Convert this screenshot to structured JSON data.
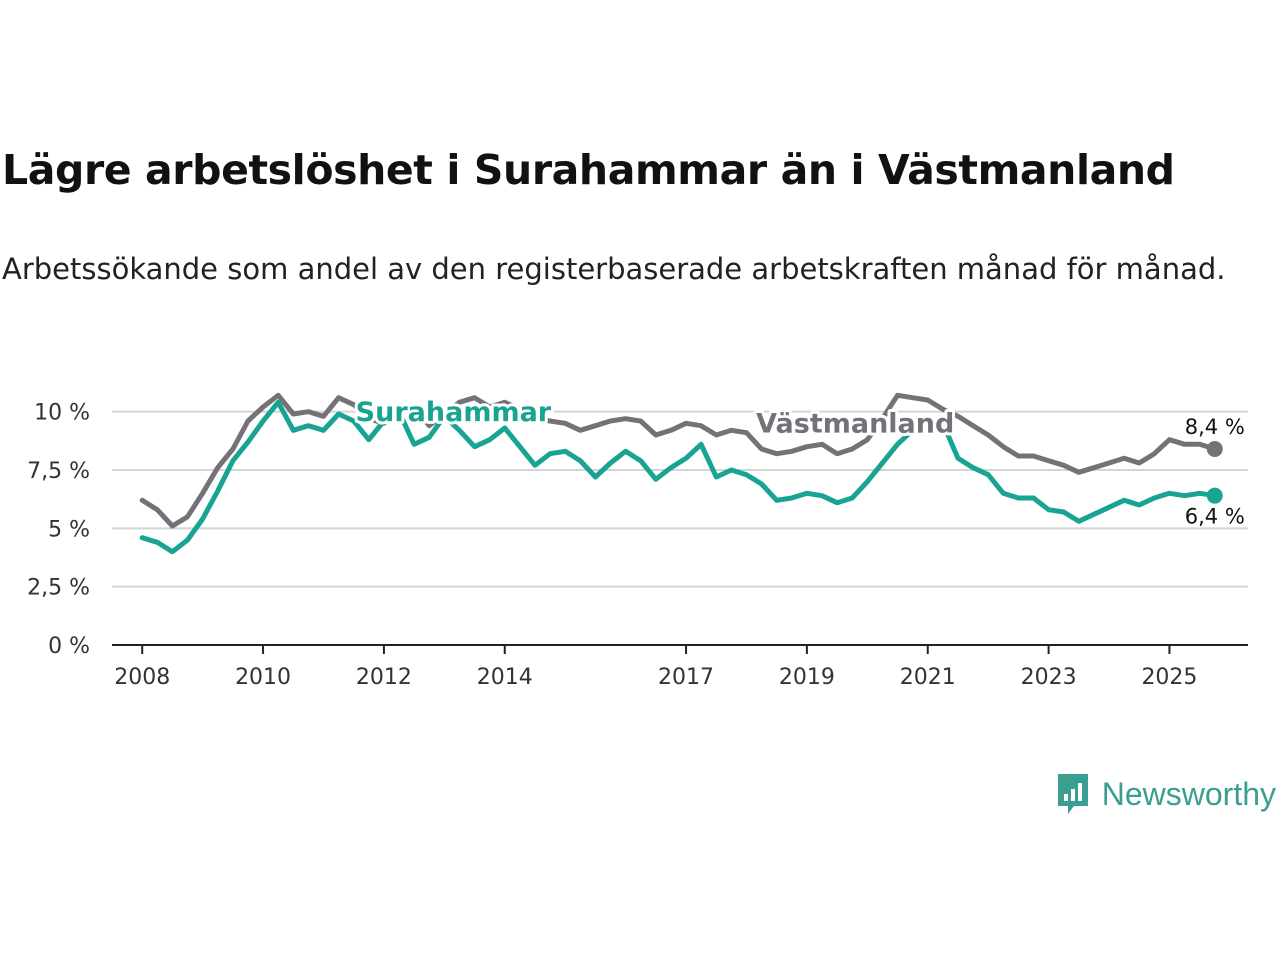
{
  "title": "Lägre arbetslöshet i Surahammar än i Västmanland",
  "subtitle": "Arbetssökande som andel av den registerbaserade arbetskraften månad för månad.",
  "brand": {
    "name": "Newsworthy",
    "color": "#3a9e90",
    "icon": "newsworthy-logo-icon"
  },
  "chart_data": {
    "type": "line",
    "title": "Lägre arbetslöshet i Surahammar än i Västmanland",
    "xlabel": "",
    "ylabel": "",
    "xlim": [
      2007.5,
      2026.3
    ],
    "ylim": [
      0,
      10.5
    ],
    "grid": "horizontal",
    "y_ticks": [
      {
        "value": 0,
        "label": "0 %"
      },
      {
        "value": 2.5,
        "label": "2,5 %"
      },
      {
        "value": 5,
        "label": "5 %"
      },
      {
        "value": 7.5,
        "label": "7,5 %"
      },
      {
        "value": 10,
        "label": "10 %"
      }
    ],
    "x_ticks": [
      {
        "value": 2008,
        "label": "2008"
      },
      {
        "value": 2010,
        "label": "2010"
      },
      {
        "value": 2012,
        "label": "2012"
      },
      {
        "value": 2014,
        "label": "2014"
      },
      {
        "value": 2017,
        "label": "2017"
      },
      {
        "value": 2019,
        "label": "2019"
      },
      {
        "value": 2021,
        "label": "2021"
      },
      {
        "value": 2023,
        "label": "2023"
      },
      {
        "value": 2025,
        "label": "2025"
      }
    ],
    "series": [
      {
        "name": "Västmanland",
        "color": "#747278",
        "label_at": {
          "x": 2019.8,
          "y": 9.1
        },
        "end_label": "8,4 %",
        "points": [
          [
            2008.0,
            6.2
          ],
          [
            2008.25,
            5.8
          ],
          [
            2008.5,
            5.1
          ],
          [
            2008.75,
            5.5
          ],
          [
            2009.0,
            6.5
          ],
          [
            2009.25,
            7.6
          ],
          [
            2009.5,
            8.4
          ],
          [
            2009.75,
            9.6
          ],
          [
            2010.0,
            10.2
          ],
          [
            2010.25,
            10.7
          ],
          [
            2010.5,
            9.9
          ],
          [
            2010.75,
            10.0
          ],
          [
            2011.0,
            9.8
          ],
          [
            2011.25,
            10.6
          ],
          [
            2011.5,
            10.3
          ],
          [
            2011.75,
            9.7
          ],
          [
            2012.0,
            9.5
          ],
          [
            2012.25,
            10.0
          ],
          [
            2012.5,
            10.2
          ],
          [
            2012.75,
            9.4
          ],
          [
            2013.0,
            9.9
          ],
          [
            2013.25,
            10.4
          ],
          [
            2013.5,
            10.6
          ],
          [
            2013.75,
            10.2
          ],
          [
            2014.0,
            10.4
          ],
          [
            2014.25,
            10.1
          ],
          [
            2014.5,
            9.7
          ],
          [
            2014.75,
            9.6
          ],
          [
            2015.0,
            9.5
          ],
          [
            2015.25,
            9.2
          ],
          [
            2015.5,
            9.4
          ],
          [
            2015.75,
            9.6
          ],
          [
            2016.0,
            9.7
          ],
          [
            2016.25,
            9.6
          ],
          [
            2016.5,
            9.0
          ],
          [
            2016.75,
            9.2
          ],
          [
            2017.0,
            9.5
          ],
          [
            2017.25,
            9.4
          ],
          [
            2017.5,
            9.0
          ],
          [
            2017.75,
            9.2
          ],
          [
            2018.0,
            9.1
          ],
          [
            2018.25,
            8.4
          ],
          [
            2018.5,
            8.2
          ],
          [
            2018.75,
            8.3
          ],
          [
            2019.0,
            8.5
          ],
          [
            2019.25,
            8.6
          ],
          [
            2019.5,
            8.2
          ],
          [
            2019.75,
            8.4
          ],
          [
            2020.0,
            8.8
          ],
          [
            2020.25,
            9.7
          ],
          [
            2020.5,
            10.7
          ],
          [
            2020.75,
            10.6
          ],
          [
            2021.0,
            10.5
          ],
          [
            2021.25,
            10.1
          ],
          [
            2021.5,
            9.8
          ],
          [
            2021.75,
            9.4
          ],
          [
            2022.0,
            9.0
          ],
          [
            2022.25,
            8.5
          ],
          [
            2022.5,
            8.1
          ],
          [
            2022.75,
            8.1
          ],
          [
            2023.0,
            7.9
          ],
          [
            2023.25,
            7.7
          ],
          [
            2023.5,
            7.4
          ],
          [
            2023.75,
            7.6
          ],
          [
            2024.0,
            7.8
          ],
          [
            2024.25,
            8.0
          ],
          [
            2024.5,
            7.8
          ],
          [
            2024.75,
            8.2
          ],
          [
            2025.0,
            8.8
          ],
          [
            2025.25,
            8.6
          ],
          [
            2025.5,
            8.6
          ],
          [
            2025.75,
            8.4
          ]
        ]
      },
      {
        "name": "Surahammar",
        "color": "#19a393",
        "label_at": {
          "x": 2013.15,
          "y": 9.6
        },
        "end_label": "6,4 %",
        "points": [
          [
            2008.0,
            4.6
          ],
          [
            2008.25,
            4.4
          ],
          [
            2008.5,
            4.0
          ],
          [
            2008.75,
            4.5
          ],
          [
            2009.0,
            5.4
          ],
          [
            2009.25,
            6.6
          ],
          [
            2009.5,
            7.9
          ],
          [
            2009.75,
            8.7
          ],
          [
            2010.0,
            9.6
          ],
          [
            2010.25,
            10.4
          ],
          [
            2010.5,
            9.2
          ],
          [
            2010.75,
            9.4
          ],
          [
            2011.0,
            9.2
          ],
          [
            2011.25,
            9.9
          ],
          [
            2011.5,
            9.6
          ],
          [
            2011.75,
            8.8
          ],
          [
            2012.0,
            9.6
          ],
          [
            2012.25,
            10.0
          ],
          [
            2012.5,
            8.6
          ],
          [
            2012.75,
            8.9
          ],
          [
            2013.0,
            9.8
          ],
          [
            2013.25,
            9.2
          ],
          [
            2013.5,
            8.5
          ],
          [
            2013.75,
            8.8
          ],
          [
            2014.0,
            9.3
          ],
          [
            2014.25,
            8.5
          ],
          [
            2014.5,
            7.7
          ],
          [
            2014.75,
            8.2
          ],
          [
            2015.0,
            8.3
          ],
          [
            2015.25,
            7.9
          ],
          [
            2015.5,
            7.2
          ],
          [
            2015.75,
            7.8
          ],
          [
            2016.0,
            8.3
          ],
          [
            2016.25,
            7.9
          ],
          [
            2016.5,
            7.1
          ],
          [
            2016.75,
            7.6
          ],
          [
            2017.0,
            8.0
          ],
          [
            2017.25,
            8.6
          ],
          [
            2017.5,
            7.2
          ],
          [
            2017.75,
            7.5
          ],
          [
            2018.0,
            7.3
          ],
          [
            2018.25,
            6.9
          ],
          [
            2018.5,
            6.2
          ],
          [
            2018.75,
            6.3
          ],
          [
            2019.0,
            6.5
          ],
          [
            2019.25,
            6.4
          ],
          [
            2019.5,
            6.1
          ],
          [
            2019.75,
            6.3
          ],
          [
            2020.0,
            7.0
          ],
          [
            2020.25,
            7.8
          ],
          [
            2020.5,
            8.6
          ],
          [
            2020.75,
            9.2
          ],
          [
            2021.0,
            9.4
          ],
          [
            2021.25,
            9.5
          ],
          [
            2021.5,
            8.0
          ],
          [
            2021.75,
            7.6
          ],
          [
            2022.0,
            7.3
          ],
          [
            2022.25,
            6.5
          ],
          [
            2022.5,
            6.3
          ],
          [
            2022.75,
            6.3
          ],
          [
            2023.0,
            5.8
          ],
          [
            2023.25,
            5.7
          ],
          [
            2023.5,
            5.3
          ],
          [
            2023.75,
            5.6
          ],
          [
            2024.0,
            5.9
          ],
          [
            2024.25,
            6.2
          ],
          [
            2024.5,
            6.0
          ],
          [
            2024.75,
            6.3
          ],
          [
            2025.0,
            6.5
          ],
          [
            2025.25,
            6.4
          ],
          [
            2025.5,
            6.5
          ],
          [
            2025.75,
            6.4
          ]
        ]
      }
    ]
  }
}
